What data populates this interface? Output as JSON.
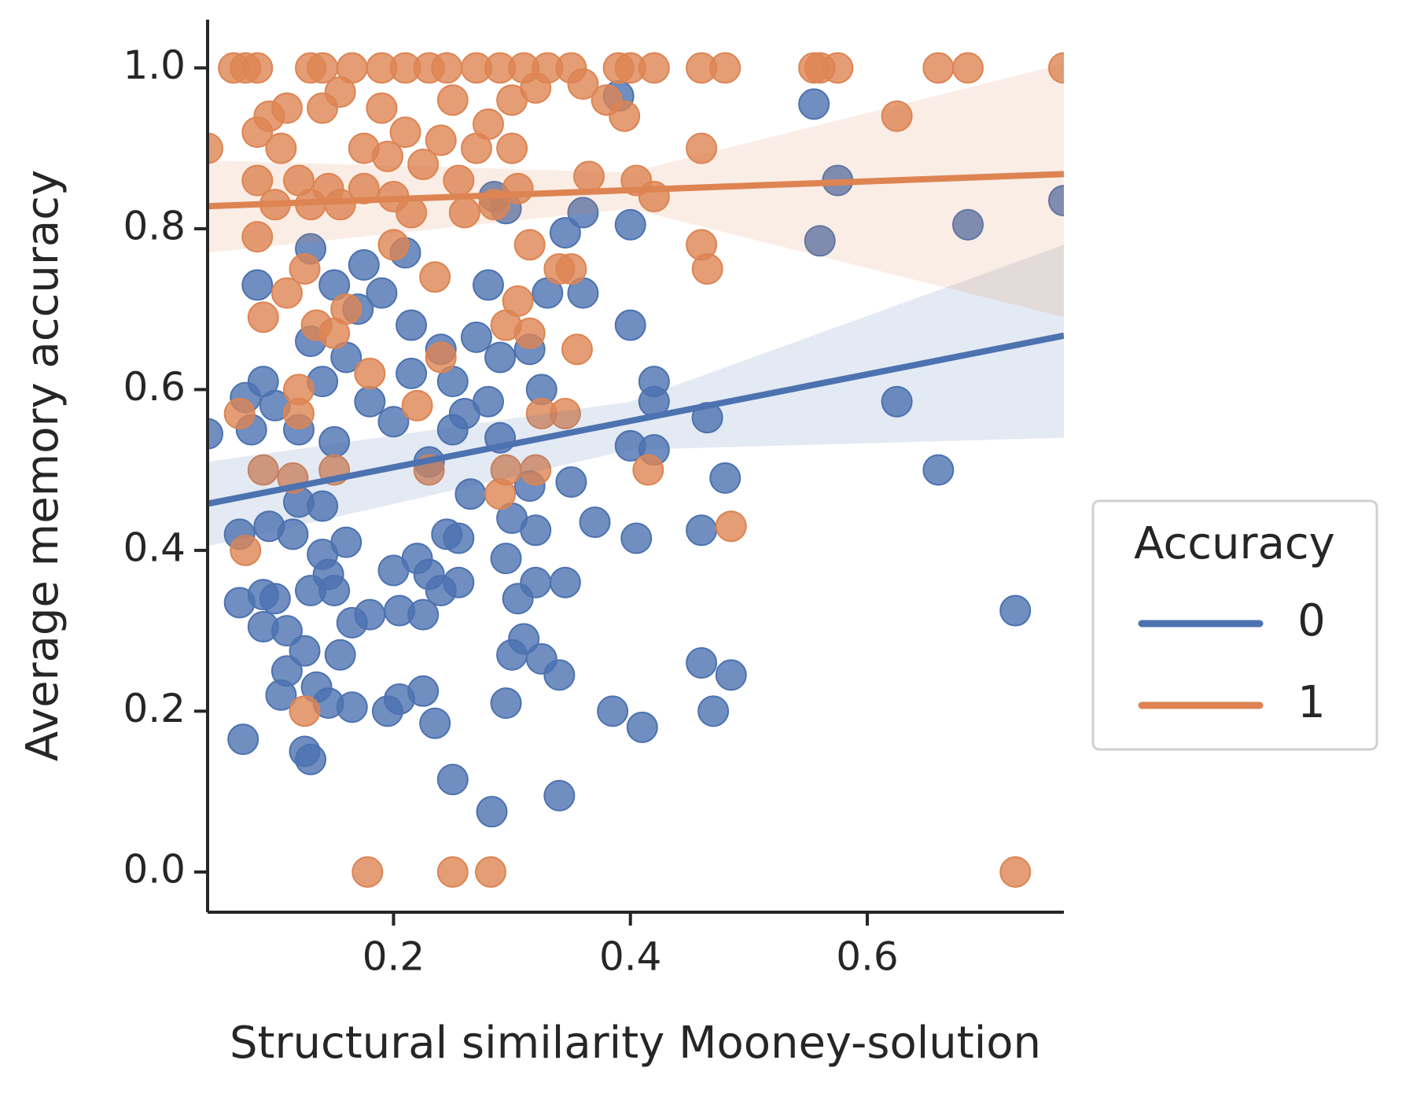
{
  "chart_data": {
    "type": "scatter",
    "xlabel": "Structural similarity Mooney-solution",
    "ylabel": "Average memory accuracy",
    "legend_title": "Accuracy",
    "legend_position": "right",
    "xlim": [
      0.043,
      0.766
    ],
    "ylim": [
      -0.05,
      1.06
    ],
    "xticks": [
      0.2,
      0.4,
      0.6
    ],
    "yticks": [
      {
        "value": 0,
        "label": "0.0"
      },
      0.2,
      0.4,
      0.6,
      0.8,
      {
        "value": 1,
        "label": "1.0"
      }
    ],
    "series": [
      {
        "name": "0",
        "color": "#4c72b0",
        "x": [
          0.043,
          0.07,
          0.07,
          0.073,
          0.075,
          0.08,
          0.085,
          0.09,
          0.09,
          0.09,
          0.095,
          0.1,
          0.1,
          0.105,
          0.11,
          0.11,
          0.115,
          0.12,
          0.12,
          0.125,
          0.125,
          0.13,
          0.13,
          0.13,
          0.13,
          0.135,
          0.14,
          0.14,
          0.14,
          0.145,
          0.145,
          0.15,
          0.15,
          0.15,
          0.155,
          0.16,
          0.16,
          0.165,
          0.165,
          0.17,
          0.175,
          0.18,
          0.18,
          0.19,
          0.195,
          0.2,
          0.2,
          0.205,
          0.205,
          0.21,
          0.215,
          0.215,
          0.22,
          0.225,
          0.225,
          0.23,
          0.23,
          0.235,
          0.24,
          0.24,
          0.245,
          0.25,
          0.25,
          0.255,
          0.255,
          0.25,
          0.26,
          0.265,
          0.27,
          0.28,
          0.28,
          0.283,
          0.285,
          0.29,
          0.29,
          0.295,
          0.295,
          0.295,
          0.3,
          0.3,
          0.305,
          0.31,
          0.315,
          0.315,
          0.32,
          0.32,
          0.325,
          0.325,
          0.33,
          0.34,
          0.34,
          0.345,
          0.345,
          0.35,
          0.36,
          0.36,
          0.37,
          0.385,
          0.39,
          0.4,
          0.4,
          0.4,
          0.405,
          0.41,
          0.42,
          0.42,
          0.42,
          0.46,
          0.46,
          0.465,
          0.47,
          0.48,
          0.485,
          0.555,
          0.56,
          0.575,
          0.625,
          0.66,
          0.685,
          0.725,
          0.766
        ],
        "values": [
          0.545,
          0.42,
          0.335,
          0.165,
          0.59,
          0.55,
          0.73,
          0.61,
          0.345,
          0.305,
          0.43,
          0.58,
          0.34,
          0.22,
          0.25,
          0.3,
          0.42,
          0.55,
          0.46,
          0.275,
          0.15,
          0.775,
          0.66,
          0.35,
          0.14,
          0.23,
          0.61,
          0.455,
          0.395,
          0.37,
          0.21,
          0.535,
          0.73,
          0.35,
          0.27,
          0.64,
          0.41,
          0.31,
          0.205,
          0.7,
          0.755,
          0.585,
          0.32,
          0.72,
          0.2,
          0.56,
          0.375,
          0.215,
          0.325,
          0.77,
          0.62,
          0.68,
          0.39,
          0.225,
          0.32,
          0.51,
          0.37,
          0.185,
          0.65,
          0.35,
          0.42,
          0.55,
          0.61,
          0.415,
          0.36,
          0.115,
          0.57,
          0.47,
          0.665,
          0.73,
          0.585,
          0.075,
          0.84,
          0.64,
          0.54,
          0.825,
          0.39,
          0.21,
          0.44,
          0.27,
          0.34,
          0.29,
          0.48,
          0.65,
          0.425,
          0.36,
          0.6,
          0.265,
          0.72,
          0.245,
          0.095,
          0.795,
          0.36,
          0.485,
          0.82,
          0.72,
          0.435,
          0.2,
          0.965,
          0.805,
          0.68,
          0.53,
          0.415,
          0.18,
          0.61,
          0.585,
          0.525,
          0.425,
          0.26,
          0.565,
          0.2,
          0.49,
          0.245,
          0.955,
          0.785,
          0.86,
          0.585,
          0.5,
          0.805,
          0.325,
          0.835
        ],
        "fit": {
          "x": [
            0.043,
            0.4,
            0.766
          ],
          "values": [
            0.458,
            0.561,
            0.667
          ],
          "lower": [
            0.405,
            0.525,
            0.54
          ],
          "upper": [
            0.51,
            0.585,
            0.78
          ]
        }
      },
      {
        "name": "1",
        "color": "#dd8452",
        "x": [
          0.043,
          0.065,
          0.075,
          0.085,
          0.07,
          0.075,
          0.085,
          0.085,
          0.085,
          0.09,
          0.09,
          0.095,
          0.1,
          0.105,
          0.11,
          0.11,
          0.115,
          0.12,
          0.12,
          0.12,
          0.125,
          0.125,
          0.13,
          0.13,
          0.135,
          0.14,
          0.14,
          0.145,
          0.15,
          0.15,
          0.155,
          0.155,
          0.16,
          0.165,
          0.175,
          0.175,
          0.178,
          0.18,
          0.19,
          0.19,
          0.195,
          0.2,
          0.2,
          0.21,
          0.21,
          0.215,
          0.22,
          0.225,
          0.23,
          0.23,
          0.235,
          0.24,
          0.24,
          0.245,
          0.25,
          0.25,
          0.255,
          0.26,
          0.27,
          0.27,
          0.28,
          0.282,
          0.285,
          0.29,
          0.29,
          0.295,
          0.295,
          0.3,
          0.3,
          0.305,
          0.305,
          0.31,
          0.315,
          0.315,
          0.32,
          0.32,
          0.325,
          0.33,
          0.34,
          0.345,
          0.35,
          0.35,
          0.355,
          0.36,
          0.365,
          0.38,
          0.39,
          0.395,
          0.4,
          0.405,
          0.415,
          0.42,
          0.42,
          0.46,
          0.46,
          0.46,
          0.465,
          0.485,
          0.48,
          0.555,
          0.56,
          0.575,
          0.625,
          0.66,
          0.685,
          0.725,
          0.766
        ],
        "values": [
          0.9,
          1,
          1,
          1,
          0.57,
          0.4,
          0.92,
          0.86,
          0.79,
          0.69,
          0.5,
          0.94,
          0.83,
          0.9,
          0.72,
          0.95,
          0.49,
          0.6,
          0.57,
          0.86,
          0.2,
          0.75,
          1,
          0.83,
          0.68,
          1,
          0.95,
          0.85,
          0.67,
          0.5,
          0.97,
          0.83,
          0.7,
          1,
          0.9,
          0.85,
          0,
          0.62,
          1,
          0.95,
          0.89,
          0.84,
          0.78,
          1,
          0.92,
          0.82,
          0.58,
          0.88,
          1,
          0.5,
          0.74,
          0.64,
          0.91,
          1,
          0.96,
          0,
          0.86,
          0.82,
          1,
          0.9,
          0.93,
          0,
          0.83,
          1,
          0.47,
          0.5,
          0.68,
          0.96,
          0.9,
          0.85,
          0.71,
          1,
          0.78,
          0.67,
          0.5,
          0.975,
          0.57,
          1,
          0.75,
          0.57,
          1,
          0.75,
          0.65,
          0.98,
          0.865,
          0.96,
          1,
          0.94,
          1,
          0.86,
          0.5,
          1,
          0.84,
          1,
          0.9,
          0.78,
          0.75,
          0.43,
          1,
          1,
          1,
          1,
          0.94,
          1,
          1,
          0,
          1
        ],
        "fit": {
          "x": [
            0.043,
            0.4,
            0.766
          ],
          "values": [
            0.828,
            0.848,
            0.868
          ],
          "lower": [
            0.77,
            0.825,
            0.69
          ],
          "upper": [
            0.885,
            0.87,
            1.005
          ]
        }
      }
    ]
  }
}
